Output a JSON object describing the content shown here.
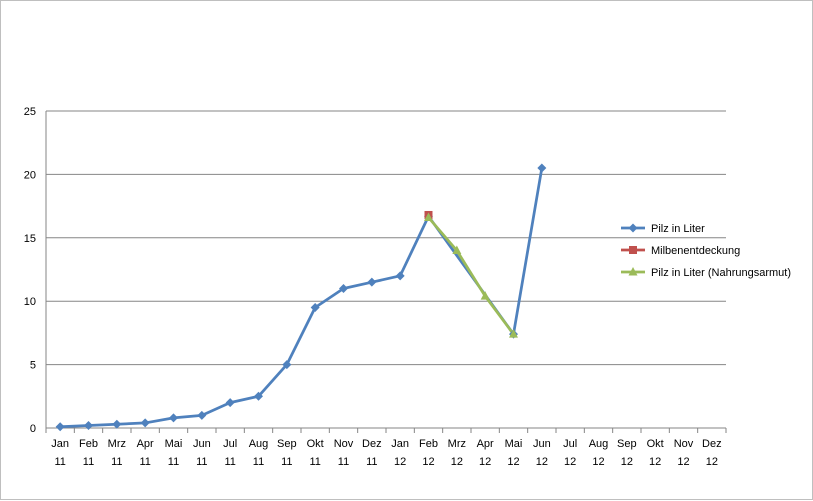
{
  "chart_data": {
    "type": "line",
    "title": "",
    "xlabel": "",
    "ylabel": "",
    "ylim": [
      0,
      25
    ],
    "y_ticks": [
      0,
      5,
      10,
      15,
      20,
      25
    ],
    "grid": "horizontal",
    "legend_position": "right",
    "categories": [
      {
        "month": "Jan",
        "year": "11"
      },
      {
        "month": "Feb",
        "year": "11"
      },
      {
        "month": "Mrz",
        "year": "11"
      },
      {
        "month": "Apr",
        "year": "11"
      },
      {
        "month": "Mai",
        "year": "11"
      },
      {
        "month": "Jun",
        "year": "11"
      },
      {
        "month": "Jul",
        "year": "11"
      },
      {
        "month": "Aug",
        "year": "11"
      },
      {
        "month": "Sep",
        "year": "11"
      },
      {
        "month": "Okt",
        "year": "11"
      },
      {
        "month": "Nov",
        "year": "11"
      },
      {
        "month": "Dez",
        "year": "11"
      },
      {
        "month": "Jan",
        "year": "12"
      },
      {
        "month": "Feb",
        "year": "12"
      },
      {
        "month": "Mrz",
        "year": "12"
      },
      {
        "month": "Apr",
        "year": "12"
      },
      {
        "month": "Mai",
        "year": "12"
      },
      {
        "month": "Jun",
        "year": "12"
      },
      {
        "month": "Jul",
        "year": "12"
      },
      {
        "month": "Aug",
        "year": "12"
      },
      {
        "month": "Sep",
        "year": "12"
      },
      {
        "month": "Okt",
        "year": "12"
      },
      {
        "month": "Nov",
        "year": "12"
      },
      {
        "month": "Dez",
        "year": "12"
      }
    ],
    "series": [
      {
        "name": "Pilz in Liter",
        "color": "#4f81bd",
        "marker": "diamond",
        "values": [
          0.1,
          0.2,
          0.3,
          0.4,
          0.8,
          1.0,
          2.0,
          2.5,
          5.0,
          9.5,
          11.0,
          11.5,
          12.0,
          16.7,
          null,
          null,
          7.4,
          20.5,
          null,
          null,
          null,
          null,
          null,
          null
        ]
      },
      {
        "name": "Milbenentdeckung",
        "color": "#c0504d",
        "marker": "square",
        "values": [
          null,
          null,
          null,
          null,
          null,
          null,
          null,
          null,
          null,
          null,
          null,
          null,
          null,
          16.8,
          null,
          null,
          null,
          null,
          null,
          null,
          null,
          null,
          null,
          null
        ]
      },
      {
        "name": "Pilz in Liter (Nahrungsarmut)",
        "color": "#9bbb59",
        "marker": "triangle",
        "values": [
          null,
          null,
          null,
          null,
          null,
          null,
          null,
          null,
          null,
          null,
          null,
          null,
          null,
          16.6,
          14.0,
          10.4,
          7.4,
          null,
          null,
          null,
          null,
          null,
          null,
          null
        ]
      }
    ]
  }
}
